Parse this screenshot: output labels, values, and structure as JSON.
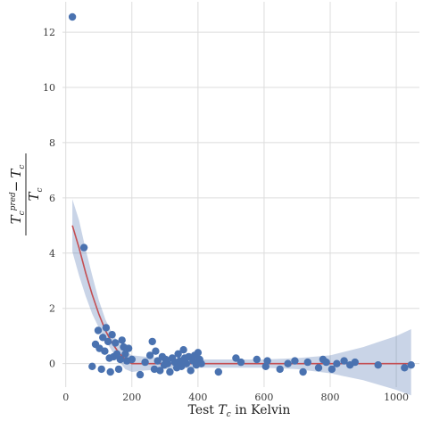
{
  "chart_data": {
    "type": "scatter",
    "title": "",
    "xlabel": "Test T_c in Kelvin",
    "xlabel_parts": {
      "prefix": "Test ",
      "var": "T",
      "sub": "c",
      "suffix": " in Kelvin"
    },
    "ylabel": "(T_c^pred − T_c) / T_c",
    "ylabel_parts": {
      "num_a": "T",
      "num_a_sub": "c",
      "num_a_sup": "pred",
      "minus": "−",
      "num_b": "T",
      "num_b_sub": "c",
      "den": "T",
      "den_sub": "c"
    },
    "xlim": [
      -10,
      1070
    ],
    "ylim": [
      -0.85,
      13.1
    ],
    "xticks": [
      0,
      200,
      400,
      600,
      800,
      1000
    ],
    "yticks": [
      0,
      2,
      4,
      6,
      8,
      10,
      12
    ],
    "grid": true,
    "colors": {
      "points": "#4a72b0",
      "fit_line": "#c44e52",
      "band": "#4c72b0",
      "grid": "#dcdcdc"
    },
    "series": [
      {
        "kind": "points",
        "x": [
          20,
          55,
          80,
          90,
          98,
          102,
          108,
          112,
          118,
          122,
          128,
          132,
          135,
          140,
          145,
          150,
          155,
          160,
          165,
          170,
          175,
          180,
          185,
          190,
          200,
          225,
          240,
          255,
          262,
          268,
          272,
          278,
          285,
          292,
          298,
          302,
          308,
          315,
          322,
          330,
          336,
          340,
          345,
          350,
          356,
          360,
          365,
          372,
          378,
          385,
          390,
          395,
          400,
          405,
          410,
          462,
          515,
          530,
          578,
          605,
          610,
          648,
          672,
          693,
          718,
          732,
          765,
          778,
          788,
          805,
          820,
          842,
          860,
          875,
          945,
          1025,
          1045
        ],
        "y": [
          12.55,
          4.2,
          -0.1,
          0.7,
          1.2,
          0.55,
          -0.2,
          0.95,
          0.45,
          1.3,
          0.8,
          0.2,
          -0.3,
          1.05,
          0.25,
          0.75,
          0.35,
          -0.2,
          0.15,
          0.85,
          0.6,
          0.35,
          0.1,
          0.55,
          0.15,
          -0.4,
          0.05,
          0.3,
          0.8,
          -0.2,
          0.45,
          0.1,
          -0.25,
          0.25,
          -0.05,
          0.15,
          0.0,
          -0.3,
          0.2,
          0.05,
          -0.15,
          0.35,
          0.1,
          -0.1,
          0.5,
          0.2,
          0.0,
          0.25,
          -0.25,
          0.1,
          0.3,
          -0.05,
          0.4,
          0.15,
          0.0,
          -0.3,
          0.2,
          0.05,
          0.15,
          -0.1,
          0.1,
          -0.2,
          0.0,
          0.1,
          -0.3,
          0.05,
          -0.15,
          0.15,
          0.05,
          -0.2,
          0.0,
          0.1,
          -0.05,
          0.05,
          -0.05,
          -0.15,
          -0.05
        ]
      },
      {
        "kind": "fit_line",
        "x": [
          20,
          40,
          60,
          80,
          100,
          120,
          140,
          160,
          180,
          200,
          240,
          300,
          400,
          500,
          600,
          700,
          800,
          900,
          1000,
          1045
        ],
        "y": [
          5.0,
          4.2,
          3.3,
          2.5,
          1.8,
          1.2,
          0.75,
          0.4,
          0.15,
          0.0,
          0.0,
          0.0,
          0.0,
          0.0,
          0.0,
          0.0,
          0.0,
          0.0,
          0.0,
          0.0
        ]
      },
      {
        "kind": "confidence_band",
        "x": [
          20,
          40,
          60,
          80,
          100,
          120,
          140,
          160,
          180,
          200,
          240,
          300,
          400,
          500,
          600,
          700,
          800,
          900,
          1000,
          1045
        ],
        "upper": [
          5.95,
          5.2,
          4.15,
          3.2,
          2.3,
          1.6,
          1.1,
          0.75,
          0.45,
          0.3,
          0.25,
          0.2,
          0.15,
          0.15,
          0.15,
          0.2,
          0.3,
          0.6,
          1.0,
          1.25
        ],
        "lower": [
          4.05,
          3.2,
          2.45,
          1.8,
          1.3,
          0.85,
          0.45,
          0.1,
          -0.2,
          -0.3,
          -0.25,
          -0.2,
          -0.15,
          -0.15,
          -0.15,
          -0.2,
          -0.35,
          -0.6,
          -0.95,
          -1.15
        ]
      }
    ]
  }
}
